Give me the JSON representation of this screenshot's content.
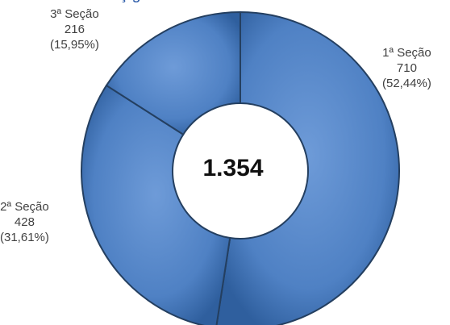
{
  "chart_data": {
    "type": "pie",
    "title": "",
    "center_label": "1.354",
    "categories": [
      "1ª Seção",
      "2ª Seção",
      "3ª Seção"
    ],
    "values": [
      710,
      428,
      216
    ],
    "value_labels": [
      "710",
      "428",
      "216"
    ],
    "percent_labels": [
      "(52,44%)",
      "(31,61%)",
      "(15,95%)"
    ],
    "legend": "none",
    "colors": {
      "fill": "#4f81c4",
      "fill_light": "#6e9bd8",
      "fill_dark": "#2f5f9e",
      "stroke": "#243f60"
    }
  },
  "title_fragment": "ç       g"
}
